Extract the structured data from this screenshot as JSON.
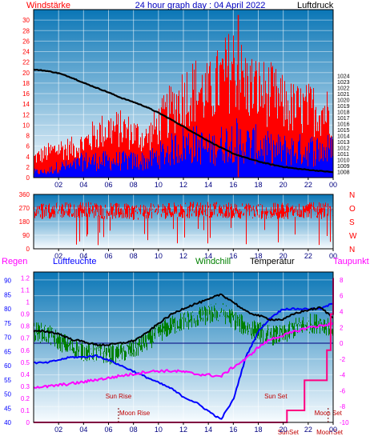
{
  "header": {
    "left_label": "Windstärke",
    "title": "24 hour graph day : 04 April 2022",
    "right_label": "Luftdruck"
  },
  "lower_header": {
    "regen": "Regen",
    "luftfeuchte": "Luftfeuchte",
    "windchill": "Windchill",
    "temperatur": "Temperatur",
    "taupunkt": "Taupunkt"
  },
  "colors": {
    "wind_gust": "#ff0000",
    "wind_avg": "#0000ff",
    "pressure": "#000000",
    "direction": "#ff0000",
    "humidity": "#0000ff",
    "windchill": "#008000",
    "temperature": "#000000",
    "dewpoint": "#ff00ff",
    "rain": "#ff0080",
    "freezing": "#000080"
  },
  "chart_data": [
    {
      "type": "bar",
      "title": "24 hour graph day : 04 April 2022",
      "ylabel": "Windstärke",
      "y2label": "Luftdruck",
      "ylim": [
        0,
        32
      ],
      "yticks": [
        0,
        2,
        4,
        6,
        8,
        10,
        12,
        14,
        16,
        18,
        20,
        22,
        24,
        26,
        28,
        30
      ],
      "y2lim": [
        1007,
        1035
      ],
      "y2ticks": [
        1008,
        1009,
        1010,
        1011,
        1012,
        1013,
        1014,
        1015,
        1016,
        1017,
        1018,
        1019,
        1020,
        1021,
        1022,
        1023,
        1024
      ],
      "xticks": [
        "02",
        "04",
        "06",
        "08",
        "10",
        "12",
        "14",
        "16",
        "18",
        "20",
        "22",
        "00"
      ],
      "grid": true,
      "series": [
        {
          "name": "Windstärke",
          "role": "gust",
          "x": [
            0,
            1,
            2,
            3,
            4,
            5,
            6,
            7,
            8,
            9,
            10,
            11,
            12,
            13,
            14,
            15,
            16,
            17,
            18,
            19,
            20,
            21,
            22,
            23,
            24
          ],
          "values": [
            4,
            5,
            6,
            6,
            7,
            9,
            10,
            10,
            9,
            8,
            11,
            14,
            17,
            18,
            17,
            20,
            23,
            19,
            18,
            17,
            15,
            14,
            14,
            14,
            13
          ]
        },
        {
          "name": "Windstärke",
          "role": "average",
          "x": [
            0,
            1,
            2,
            3,
            4,
            5,
            6,
            7,
            8,
            9,
            10,
            11,
            12,
            13,
            14,
            15,
            16,
            17,
            18,
            19,
            20,
            21,
            22,
            23,
            24
          ],
          "values": [
            1,
            1,
            2,
            2,
            3,
            3,
            3,
            3,
            3,
            3,
            4,
            5,
            6,
            6,
            5,
            6,
            7,
            6,
            6,
            5,
            5,
            5,
            5,
            5,
            5
          ]
        },
        {
          "name": "Luftdruck",
          "x": [
            0,
            1,
            2,
            3,
            4,
            5,
            6,
            7,
            8,
            9,
            10,
            11,
            12,
            13,
            14,
            15,
            16,
            17,
            18,
            19,
            20,
            21,
            22,
            23,
            24
          ],
          "values": [
            1025,
            1024.8,
            1024.4,
            1023.7,
            1022.8,
            1022,
            1021.2,
            1020.3,
            1019.6,
            1018.8,
            1017.8,
            1016.7,
            1015.5,
            1014.3,
            1013.1,
            1012,
            1011,
            1010.3,
            1009.7,
            1009.2,
            1008.8,
            1008.5,
            1008.3,
            1008.1,
            1007.9
          ]
        }
      ]
    },
    {
      "type": "bar",
      "ylabel": "N W S O N",
      "ylim": [
        0,
        360
      ],
      "yticks": [
        0,
        90,
        180,
        270,
        360
      ],
      "y2ticks": [
        "N",
        "W",
        "S",
        "O",
        "N"
      ],
      "xticks": [
        "02",
        "04",
        "06",
        "08",
        "10",
        "12",
        "14",
        "16",
        "18",
        "20",
        "22",
        "00"
      ],
      "series": [
        {
          "name": "Windrichtung",
          "x": [
            0,
            2,
            4,
            6,
            8,
            10,
            12,
            14,
            16,
            18,
            20,
            22,
            24
          ],
          "values": [
            250,
            255,
            260,
            250,
            245,
            250,
            255,
            260,
            255,
            250,
            250,
            255,
            250
          ]
        }
      ]
    },
    {
      "type": "line",
      "xticks": [
        "02",
        "04",
        "06",
        "08",
        "10",
        "12",
        "14",
        "16",
        "18",
        "20",
        "22",
        "00"
      ],
      "axes": {
        "rain_ticks": [
          0,
          0.1,
          0.2,
          0.3,
          0.4,
          0.5,
          0.6,
          0.7,
          0.8,
          0.9,
          1,
          1.1,
          1.2
        ],
        "humidity_ticks": [
          40,
          45,
          50,
          55,
          60,
          65,
          70,
          75,
          80,
          85,
          90
        ],
        "temperature_ticks": [
          -10,
          -8,
          -6,
          -4,
          -2,
          0,
          2,
          4,
          6,
          8
        ]
      },
      "ylim_humidity": [
        40,
        93
      ],
      "ylim_rain": [
        0,
        1.25
      ],
      "ylim_temperature": [
        -10,
        9
      ],
      "annotations": [
        {
          "text": "Sun Rise",
          "x": 6.8
        },
        {
          "text": "Moon Rise",
          "x": 6.8
        },
        {
          "text": "Sun Set",
          "x": 19.4
        },
        {
          "text": "Moon Set",
          "x": 23.6
        },
        {
          "text": "SunSet",
          "x": 20.4
        },
        {
          "text": "Moon",
          "x": 23.3
        },
        {
          "text": "Set",
          "x": 24
        }
      ],
      "series": [
        {
          "name": "Temperatur",
          "x": [
            0,
            1,
            2,
            3,
            4,
            5,
            6,
            7,
            8,
            9,
            10,
            11,
            12,
            13,
            14,
            15,
            16,
            17,
            18,
            19,
            20,
            21,
            22,
            23,
            24
          ],
          "values": [
            1.5,
            1.5,
            1.2,
            0.5,
            0.2,
            -0.2,
            -0.2,
            0,
            0.3,
            1.2,
            2.5,
            3.6,
            4.4,
            5.0,
            5.5,
            6.2,
            5.2,
            4.0,
            3.5,
            3.0,
            3.0,
            3.8,
            4.2,
            4.5,
            3.2
          ]
        },
        {
          "name": "Windchill",
          "x": [
            0,
            1,
            2,
            3,
            4,
            5,
            6,
            7,
            8,
            9,
            10,
            11,
            12,
            13,
            14,
            15,
            16,
            17,
            18,
            19,
            20,
            21,
            22,
            23,
            24
          ],
          "values": [
            1.5,
            1.2,
            0.3,
            -0.5,
            -1.0,
            -1.2,
            -1.4,
            -1.2,
            -0.8,
            0.2,
            1.3,
            2.2,
            2.8,
            3.2,
            3.6,
            4.0,
            3.0,
            2.0,
            1.5,
            1.0,
            1.0,
            2.0,
            2.5,
            2.5,
            2.0
          ]
        },
        {
          "name": "Taupunkt",
          "x": [
            0,
            1,
            2,
            3,
            4,
            5,
            6,
            7,
            8,
            9,
            10,
            11,
            12,
            13,
            14,
            15,
            16,
            17,
            18,
            19,
            20,
            21,
            22,
            23,
            24
          ],
          "values": [
            -5.5,
            -5.5,
            -5.3,
            -5.1,
            -4.9,
            -4.6,
            -4.4,
            -4.1,
            -3.9,
            -3.6,
            -3.5,
            -3.5,
            -3.6,
            -3.9,
            -4.0,
            -4.2,
            -3.0,
            -2.0,
            -0.5,
            0.5,
            1.0,
            1.5,
            2.0,
            2.2,
            2.5
          ]
        },
        {
          "name": "Luftfeuchte",
          "x": [
            0,
            1,
            2,
            3,
            4,
            5,
            6,
            7,
            8,
            9,
            10,
            11,
            12,
            13,
            14,
            15,
            16,
            17,
            18,
            19,
            20,
            21,
            22,
            23,
            24
          ],
          "values": [
            61,
            61,
            62,
            63,
            63,
            63.5,
            62,
            60,
            58,
            56,
            54,
            52,
            49,
            47,
            44,
            41,
            48,
            63,
            72,
            77,
            80,
            80,
            80,
            80,
            82
          ]
        },
        {
          "name": "Regen",
          "x": [
            0,
            5,
            10,
            15,
            19,
            20.3,
            21.7,
            22,
            23,
            23.5,
            23.8,
            24
          ],
          "values": [
            0,
            0,
            0,
            0,
            0,
            0.1,
            0.35,
            0.35,
            0.35,
            0.6,
            0.9,
            1.2
          ]
        }
      ]
    }
  ]
}
